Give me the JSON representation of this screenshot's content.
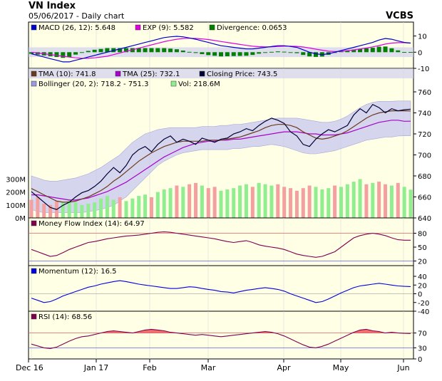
{
  "header": {
    "title": "VN Index",
    "subtitle": "05/06/2017 - Daily chart",
    "brand": "VCBS"
  },
  "x_axis": {
    "labels": [
      "Dec 16",
      "Jan 17",
      "Feb",
      "Mar",
      "Apr",
      "May",
      "Jun"
    ]
  },
  "colors": {
    "panel_bg": "#ffffe6",
    "band_fill": "#c8c8f0",
    "macd": "#0000cc",
    "exp": "#e000e0",
    "divergence": "#008000",
    "tma10": "#6b3a1f",
    "tma25": "#aa00cc",
    "close": "#000033",
    "vol_up": "#90ee90",
    "vol_down": "#f4a0a0",
    "mfi": "#800050",
    "momentum": "#0000dd",
    "rsi": "#800050",
    "rsi_fill": "#f07070",
    "ref_line": "#e06060"
  },
  "chart_data": [
    {
      "id": "macd",
      "type": "line",
      "legend": [
        {
          "label": "MACD (26, 12): 5.648",
          "color": "#0000cc"
        },
        {
          "label": "EXP (9): 5.582",
          "color": "#e000e0"
        },
        {
          "label": "Divergence: 0.0653",
          "color": "#008000"
        }
      ],
      "ylim": [
        -10,
        12
      ],
      "y_ticks": [
        "10",
        "0",
        "-10"
      ],
      "y_tick_values": [
        10,
        0,
        -10
      ],
      "series": [
        {
          "name": "MACD (26, 12)",
          "values": [
            -1,
            -2,
            -3,
            -4,
            -5,
            -6,
            -6,
            -5,
            -4,
            -3,
            -2,
            -1,
            0,
            1,
            2,
            3,
            4,
            5,
            6,
            7,
            8,
            9,
            9.5,
            9.8,
            9.5,
            8.8,
            8,
            7,
            6,
            5,
            4,
            3.5,
            3,
            2.5,
            2,
            2,
            2.5,
            3,
            3.5,
            4,
            4,
            3.5,
            3,
            1.5,
            0,
            -1,
            -1.5,
            -1,
            0,
            1,
            2,
            3,
            4,
            5,
            6,
            7.5,
            8.5,
            8,
            7,
            6,
            5.6
          ]
        },
        {
          "name": "EXP (9)",
          "values": [
            0,
            -0.5,
            -1,
            -1.5,
            -2,
            -2.5,
            -3,
            -3.5,
            -3.8,
            -3.8,
            -3.5,
            -3,
            -2.5,
            -1.5,
            -0.5,
            0.5,
            1.5,
            2.5,
            3.5,
            4.5,
            5.5,
            6.5,
            7.3,
            8,
            8.5,
            8.6,
            8.5,
            8.2,
            7.8,
            7.2,
            6.6,
            6,
            5.4,
            4.8,
            4.2,
            3.7,
            3.4,
            3.3,
            3.3,
            3.5,
            3.7,
            3.7,
            3.6,
            3.2,
            2.6,
            1.9,
            1.2,
            0.6,
            0.4,
            0.5,
            0.9,
            1.4,
            2,
            2.6,
            3.3,
            4.1,
            5,
            5.6,
            5.9,
            5.9,
            5.6
          ]
        },
        {
          "name": "Divergence",
          "values": [
            -1,
            -1.5,
            -2,
            -2.5,
            -3,
            -3.5,
            -3,
            -1.5,
            -0.2,
            0.8,
            1.5,
            2,
            2.5,
            2.5,
            2.5,
            2.5,
            2.5,
            2.5,
            2.5,
            2.5,
            2.5,
            2.5,
            2.2,
            1.8,
            1,
            0.2,
            -0.5,
            -1.2,
            -1.8,
            -2.2,
            -2.6,
            -2.5,
            -2.4,
            -2.3,
            -2.2,
            -1.7,
            -0.9,
            -0.3,
            0.2,
            0.5,
            0.3,
            -0.2,
            -0.6,
            -1.7,
            -2.6,
            -2.9,
            -2.7,
            -1.6,
            -0.4,
            0.5,
            1.1,
            1.6,
            2,
            2.4,
            2.7,
            3.4,
            3.5,
            2.4,
            1.1,
            0.1,
            0.1
          ]
        }
      ]
    },
    {
      "id": "price",
      "type": "line",
      "legend": [
        {
          "label": "TMA (10): 741.8",
          "color": "#6b3a1f"
        },
        {
          "label": "TMA (25): 732.1",
          "color": "#aa00cc"
        },
        {
          "label": "Closing Price: 743.5",
          "color": "#000033"
        },
        {
          "label": "Bollinger (20, 2): 718.2 - 751.3",
          "color": "#9a9ae0"
        },
        {
          "label": "Vol: 218.6M",
          "color": "#90ee90"
        }
      ],
      "ylim": [
        640,
        760
      ],
      "y_ticks": [
        "760",
        "740",
        "720",
        "700",
        "680",
        "660",
        "640"
      ],
      "y_tick_values": [
        760,
        740,
        720,
        700,
        680,
        660,
        640
      ],
      "vol_ticks": [
        "300M",
        "200M",
        "100M",
        "0M"
      ],
      "vol_tick_values": [
        300,
        200,
        100,
        0
      ],
      "vol_max": 330,
      "series": [
        {
          "name": "Closing Price",
          "values": [
            665,
            660,
            655,
            650,
            648,
            652,
            655,
            660,
            664,
            666,
            670,
            675,
            682,
            688,
            683,
            690,
            700,
            705,
            708,
            703,
            710,
            715,
            718,
            712,
            715,
            713,
            710,
            716,
            714,
            712,
            715,
            716,
            720,
            722,
            725,
            723,
            728,
            732,
            735,
            733,
            730,
            722,
            718,
            710,
            708,
            715,
            720,
            724,
            722,
            725,
            728,
            738,
            744,
            740,
            748,
            745,
            740,
            744,
            742,
            743,
            743.5
          ]
        },
        {
          "name": "TMA (10)",
          "values": [
            668,
            665,
            662,
            659,
            656,
            655,
            655,
            656,
            658,
            660,
            663,
            666,
            670,
            675,
            679,
            684,
            689,
            694,
            698,
            702,
            705,
            708,
            710,
            712,
            713,
            713,
            713,
            713,
            714,
            714,
            714,
            715,
            716,
            717,
            719,
            721,
            723,
            726,
            728,
            729,
            729,
            728,
            726,
            722,
            719,
            716,
            715,
            716,
            718,
            720,
            723,
            727,
            731,
            735,
            738,
            740,
            741,
            742,
            742,
            742,
            741.8
          ]
        },
        {
          "name": "TMA (25)",
          "values": [
            662,
            662,
            661,
            660,
            659,
            658,
            657,
            657,
            658,
            659,
            661,
            663,
            665,
            668,
            671,
            674,
            678,
            682,
            686,
            690,
            694,
            698,
            701,
            704,
            707,
            709,
            711,
            712,
            713,
            713,
            714,
            714,
            715,
            715,
            716,
            717,
            718,
            719,
            720,
            721,
            722,
            722,
            722,
            721,
            720,
            720,
            719,
            719,
            719,
            720,
            721,
            723,
            725,
            727,
            729,
            731,
            732,
            733,
            733,
            732,
            732.1
          ]
        },
        {
          "name": "Bollinger Upper (20, 2)",
          "values": [
            680,
            678,
            676,
            675,
            675,
            676,
            677,
            678,
            680,
            682,
            685,
            688,
            692,
            696,
            700,
            706,
            712,
            716,
            720,
            722,
            724,
            725,
            726,
            726,
            726,
            726,
            726,
            727,
            727,
            727,
            728,
            728,
            729,
            729,
            730,
            731,
            732,
            733,
            734,
            735,
            735,
            735,
            735,
            734,
            733,
            732,
            731,
            731,
            732,
            734,
            737,
            741,
            745,
            748,
            750,
            751,
            751,
            751,
            751.3,
            751.3,
            751.3
          ]
        },
        {
          "name": "Bollinger Lower (20, 2)",
          "values": [
            648,
            646,
            645,
            645,
            645,
            645,
            645,
            645,
            645,
            646,
            647,
            648,
            650,
            652,
            656,
            660,
            666,
            672,
            678,
            684,
            690,
            694,
            697,
            700,
            702,
            703,
            704,
            705,
            705,
            705,
            705,
            705,
            706,
            706,
            707,
            708,
            708,
            709,
            710,
            709,
            708,
            706,
            704,
            702,
            701,
            701,
            702,
            703,
            704,
            706,
            708,
            710,
            712,
            714,
            715,
            716,
            717,
            717,
            718,
            718.2,
            718.2
          ]
        },
        {
          "name": "Vol",
          "values": [
            140,
            160,
            110,
            100,
            130,
            120,
            140,
            120,
            100,
            110,
            120,
            150,
            170,
            140,
            160,
            130,
            150,
            170,
            180,
            160,
            200,
            220,
            230,
            250,
            240,
            260,
            270,
            250,
            230,
            240,
            210,
            220,
            230,
            250,
            260,
            240,
            270,
            260,
            250,
            260,
            240,
            230,
            210,
            230,
            250,
            240,
            220,
            230,
            250,
            240,
            260,
            280,
            300,
            260,
            270,
            280,
            260,
            250,
            270,
            240,
            218.6
          ]
        }
      ],
      "up_days": [
        false,
        false,
        false,
        false,
        false,
        true,
        true,
        true,
        true,
        true,
        true,
        true,
        true,
        true,
        false,
        true,
        true,
        true,
        true,
        false,
        true,
        true,
        true,
        false,
        true,
        false,
        false,
        true,
        false,
        false,
        true,
        true,
        true,
        true,
        true,
        false,
        true,
        true,
        true,
        false,
        false,
        false,
        false,
        false,
        false,
        true,
        true,
        true,
        false,
        true,
        true,
        true,
        true,
        false,
        true,
        false,
        false,
        true,
        false,
        true,
        true
      ]
    },
    {
      "id": "mfi",
      "type": "line",
      "legend": [
        {
          "label": "Money Flow Index (14): 64.97",
          "color": "#800050"
        }
      ],
      "ylim": [
        10,
        90
      ],
      "y_ticks": [
        "80",
        "50",
        "20"
      ],
      "y_tick_values": [
        80,
        50,
        20
      ],
      "ref_lines": [
        80,
        20
      ],
      "series": [
        {
          "name": "Money Flow Index (14)",
          "values": [
            45,
            40,
            35,
            30,
            32,
            38,
            45,
            50,
            55,
            60,
            62,
            65,
            68,
            70,
            72,
            74,
            75,
            76,
            78,
            80,
            82,
            83,
            82,
            80,
            78,
            76,
            74,
            72,
            70,
            68,
            65,
            62,
            60,
            62,
            64,
            60,
            55,
            52,
            50,
            48,
            45,
            40,
            35,
            32,
            30,
            28,
            30,
            35,
            40,
            50,
            60,
            70,
            75,
            78,
            80,
            78,
            75,
            70,
            66,
            65,
            64.97
          ]
        }
      ]
    },
    {
      "id": "momentum",
      "type": "line",
      "legend": [
        {
          "label": "Momentum (12): 16.5",
          "color": "#0000dd"
        }
      ],
      "ylim": [
        -40,
        40
      ],
      "y_ticks": [
        "40",
        "20",
        "0",
        "-20",
        "-40"
      ],
      "y_tick_values": [
        40,
        20,
        0,
        -20,
        -40
      ],
      "series": [
        {
          "name": "Momentum (12)",
          "values": [
            -10,
            -15,
            -20,
            -18,
            -12,
            -5,
            0,
            5,
            10,
            15,
            18,
            22,
            25,
            28,
            30,
            28,
            25,
            22,
            20,
            18,
            16,
            14,
            12,
            12,
            14,
            16,
            15,
            12,
            10,
            8,
            5,
            4,
            2,
            5,
            8,
            10,
            12,
            14,
            12,
            10,
            6,
            0,
            -5,
            -10,
            -15,
            -20,
            -18,
            -12,
            -5,
            2,
            8,
            14,
            18,
            20,
            22,
            24,
            22,
            20,
            18,
            17,
            16.5
          ]
        }
      ]
    },
    {
      "id": "rsi",
      "type": "line",
      "legend": [
        {
          "label": "RSI (14): 68.56",
          "color": "#800050"
        }
      ],
      "ylim": [
        0,
        100
      ],
      "y_ticks": [
        "70",
        "30",
        "0"
      ],
      "y_tick_values": [
        70,
        30,
        0
      ],
      "ref_lines": [
        70,
        30
      ],
      "series": [
        {
          "name": "RSI (14)",
          "values": [
            40,
            35,
            30,
            28,
            32,
            40,
            48,
            55,
            60,
            62,
            66,
            70,
            74,
            76,
            74,
            72,
            70,
            74,
            78,
            80,
            78,
            76,
            72,
            70,
            68,
            66,
            64,
            66,
            64,
            62,
            60,
            62,
            64,
            66,
            68,
            70,
            72,
            74,
            72,
            68,
            62,
            54,
            46,
            38,
            32,
            30,
            34,
            40,
            48,
            56,
            64,
            72,
            78,
            80,
            76,
            74,
            70,
            72,
            70,
            69,
            68.56
          ]
        }
      ]
    }
  ]
}
